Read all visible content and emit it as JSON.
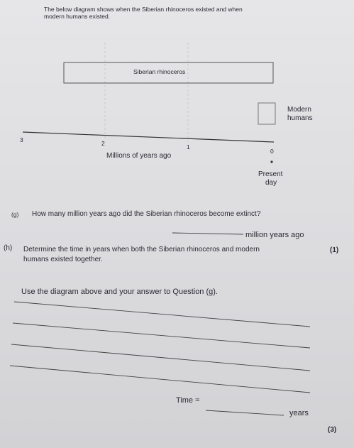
{
  "intro": [
    "The below diagram shows when the Siberian rhinoceros existed and when",
    "modern humans existed."
  ],
  "diagram": {
    "rhino_label": "Siberian rhinoceros",
    "humans_label": [
      "Modern",
      "humans"
    ],
    "axis_labels": [
      "3",
      "2",
      "1",
      "0"
    ],
    "axis_title": "Millions of years ago",
    "present": [
      "Present",
      "day"
    ]
  },
  "question_g": {
    "number": "(g)",
    "text": "How many million years ago did the Siberian rhinoceros become extinct?",
    "answer_unit": "million years ago",
    "marks": "(1)"
  },
  "question_h": {
    "number": "(h)",
    "text": [
      "Determine the time in years when both the Siberian rhinoceros and modern",
      "humans existed together."
    ],
    "instruction": "Use the diagram above and your answer to Question (g).",
    "answer_prefix": "Time =",
    "answer_unit": "years",
    "marks": "(3)"
  }
}
